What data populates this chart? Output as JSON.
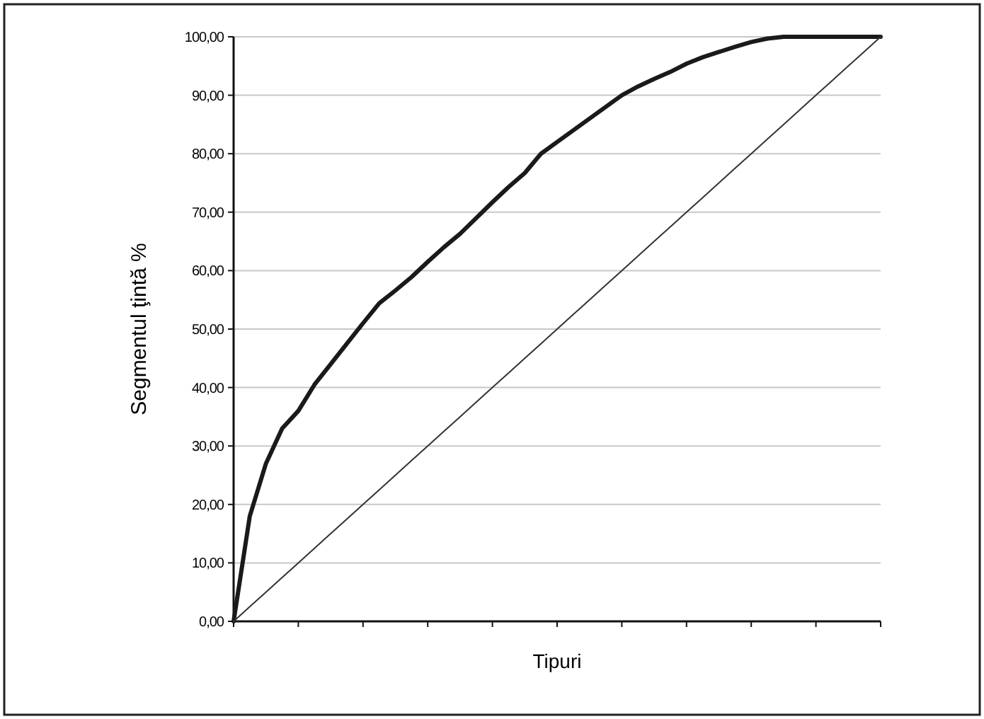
{
  "chart_data": {
    "type": "line",
    "ylabel": "Segmentul ţintă  %",
    "xlabel": "Tipuri",
    "categories": [
      null,
      null,
      null,
      null,
      null,
      null,
      null,
      null,
      null,
      null,
      null,
      null,
      null,
      null,
      null,
      null,
      null,
      null,
      null,
      null,
      null,
      null,
      null,
      null,
      null,
      null,
      null,
      null,
      null,
      null,
      null,
      null,
      null,
      null,
      null,
      null,
      null,
      null,
      null,
      null,
      null
    ],
    "series": [
      {
        "color": "#1a1a1a",
        "values": [
          0,
          18,
          27,
          33,
          36,
          40.5,
          44,
          47.5,
          51,
          54.4,
          56.6,
          58.9,
          61.5,
          64,
          66.3,
          69,
          71.7,
          74.3,
          76.7,
          80,
          82,
          84,
          86,
          88,
          90,
          91.5,
          92.8,
          94,
          95.4,
          96.5,
          97.4,
          98.3,
          99.1,
          99.7,
          100,
          100,
          100,
          100,
          100,
          100,
          100
        ]
      },
      {
        "color": "#333333",
        "values": [
          0,
          2.5,
          5,
          7.5,
          10,
          12.5,
          15,
          17.5,
          20,
          22.5,
          25,
          27.5,
          30,
          32.5,
          35,
          37.5,
          40,
          42.5,
          45,
          47.5,
          50,
          52.5,
          55,
          57.5,
          60,
          62.5,
          65,
          67.5,
          70,
          72.5,
          75,
          77.5,
          80,
          82.5,
          85,
          87.5,
          90,
          92.5,
          95,
          97.5,
          100
        ]
      }
    ],
    "ylim": [
      0,
      100
    ],
    "yticks": [
      {
        "value": 0,
        "label": "0,00"
      },
      {
        "value": 10,
        "label": "10,00"
      },
      {
        "value": 20,
        "label": "20,00"
      },
      {
        "value": 30,
        "label": "30,00"
      },
      {
        "value": 40,
        "label": "40,00"
      },
      {
        "value": 50,
        "label": "50,00"
      },
      {
        "value": 60,
        "label": "60,00"
      },
      {
        "value": 70,
        "label": "70,00"
      },
      {
        "value": 80,
        "label": "80,00"
      },
      {
        "value": 90,
        "label": "90,00"
      },
      {
        "value": 100,
        "label": "100,00"
      }
    ],
    "grid": "y",
    "tick_labels": "y",
    "line_style": "solid",
    "marker": "none"
  }
}
